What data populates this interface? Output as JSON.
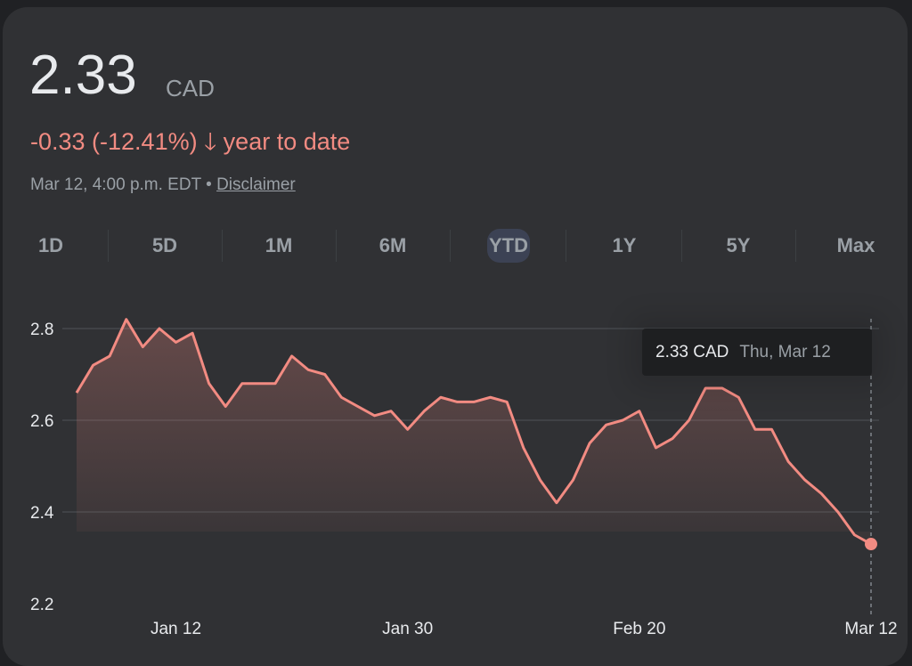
{
  "header": {
    "price": "2.33",
    "currency": "CAD",
    "change": "-0.33 (-12.41%)",
    "change_icon": "arrow-down-icon",
    "change_period": "year to date",
    "timestamp": "Mar 12, 4:00 p.m. EDT",
    "separator": "•",
    "disclaimer": "Disclaimer"
  },
  "tabs": [
    {
      "label": "1D"
    },
    {
      "label": "5D"
    },
    {
      "label": "1M"
    },
    {
      "label": "6M"
    },
    {
      "label": "YTD",
      "selected": true
    },
    {
      "label": "1Y"
    },
    {
      "label": "5Y"
    },
    {
      "label": "Max"
    }
  ],
  "tooltip": {
    "value": "2.33 CAD",
    "date": "Thu, Mar 12"
  },
  "colors": {
    "line": "#f28b82",
    "background": "#303134",
    "text": "#e8eaed",
    "muted": "#9aa0a6"
  },
  "chart_data": {
    "type": "area",
    "ylim": [
      2.2,
      2.85
    ],
    "y_ticks": [
      "2.2",
      "2.4",
      "2.6",
      "2.8"
    ],
    "x_ticks": [
      {
        "label": "Jan 12",
        "index": 6
      },
      {
        "label": "Jan 30",
        "index": 20
      },
      {
        "label": "Feb 20",
        "index": 34
      },
      {
        "label": "Mar 12",
        "index": 48
      }
    ],
    "grid": true,
    "values": [
      2.66,
      2.72,
      2.74,
      2.82,
      2.76,
      2.8,
      2.77,
      2.79,
      2.68,
      2.63,
      2.68,
      2.68,
      2.68,
      2.74,
      2.71,
      2.7,
      2.65,
      2.63,
      2.61,
      2.62,
      2.58,
      2.62,
      2.65,
      2.64,
      2.64,
      2.65,
      2.64,
      2.54,
      2.47,
      2.42,
      2.47,
      2.55,
      2.59,
      2.6,
      2.62,
      2.54,
      2.56,
      2.6,
      2.67,
      2.67,
      2.65,
      2.58,
      2.58,
      2.51,
      2.47,
      2.44,
      2.4,
      2.35,
      2.33
    ]
  }
}
